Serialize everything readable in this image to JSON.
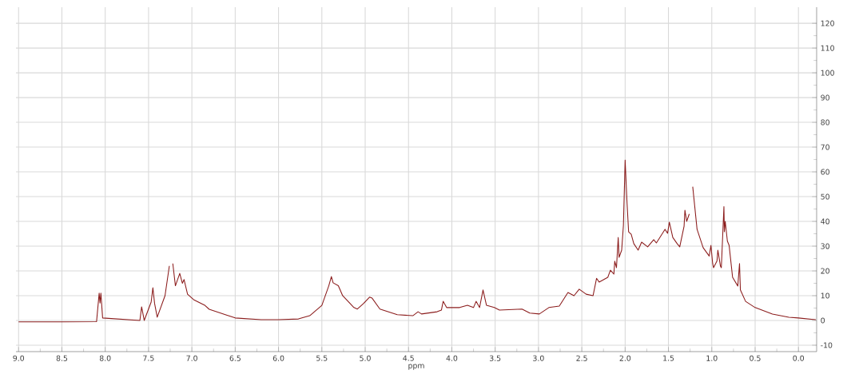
{
  "chart_data": {
    "type": "line",
    "xlabel": "ppm",
    "x": [
      9.0,
      8.5,
      8.1,
      8.07,
      8.06,
      8.05,
      8.03,
      7.6,
      7.58,
      7.55,
      7.47,
      7.45,
      7.43,
      7.4,
      7.31,
      7.26,
      7.24,
      7.22,
      7.19,
      7.14,
      7.11,
      7.09,
      7.05,
      6.98,
      6.85,
      6.8,
      6.6,
      6.5,
      6.2,
      6.0,
      5.77,
      5.64,
      5.5,
      5.42,
      5.39,
      5.37,
      5.31,
      5.26,
      5.13,
      5.09,
      5.02,
      4.95,
      4.92,
      4.83,
      4.63,
      4.45,
      4.39,
      4.35,
      4.17,
      4.12,
      4.1,
      4.06,
      3.91,
      3.82,
      3.75,
      3.72,
      3.68,
      3.64,
      3.6,
      3.51,
      3.45,
      3.19,
      3.1,
      2.99,
      2.88,
      2.76,
      2.66,
      2.59,
      2.53,
      2.45,
      2.37,
      2.33,
      2.3,
      2.2,
      2.17,
      2.13,
      2.12,
      2.1,
      2.08,
      2.07,
      2.04,
      2.02,
      2.0,
      1.98,
      1.96,
      1.93,
      1.9,
      1.85,
      1.81,
      1.74,
      1.67,
      1.64,
      1.61,
      1.54,
      1.51,
      1.49,
      1.45,
      1.4,
      1.37,
      1.32,
      1.31,
      1.29,
      1.26,
      1.245,
      1.22,
      1.17,
      1.1,
      1.03,
      1.01,
      0.99,
      0.98,
      0.94,
      0.93,
      0.9,
      0.89,
      0.86,
      0.855,
      0.845,
      0.82,
      0.8,
      0.76,
      0.7,
      0.68,
      0.67,
      0.61,
      0.5,
      0.3,
      0.11,
      0.0,
      -0.2
    ],
    "series": [
      {
        "color": "#8b1c1c",
        "values": [
          -0.6,
          -0.6,
          -0.5,
          11,
          7,
          11,
          1,
          0,
          5.5,
          0,
          7.4,
          13.2,
          6.8,
          1.3,
          10,
          22,
          null,
          23,
          14,
          19,
          15,
          16.5,
          10.6,
          8.4,
          6.1,
          4.5,
          2.2,
          1,
          0.3,
          0.3,
          0.6,
          1.9,
          6.1,
          14,
          17.7,
          15.2,
          14,
          10,
          5.2,
          4.6,
          6.8,
          9.4,
          9,
          4.6,
          2.3,
          1.9,
          3.5,
          2.6,
          3.5,
          4.2,
          7.7,
          5.2,
          5.2,
          6.1,
          5.2,
          7.7,
          5.2,
          12.3,
          6.1,
          5.2,
          4.2,
          4.6,
          3,
          2.6,
          5.2,
          5.8,
          11.3,
          10,
          12.6,
          10.6,
          10,
          17,
          15.5,
          17.4,
          20.3,
          18.7,
          23.9,
          21.3,
          33.5,
          25.5,
          28.4,
          38.4,
          64.8,
          48.7,
          35.8,
          34.8,
          31,
          28.4,
          31.6,
          29.7,
          32.6,
          31.3,
          32.9,
          36.8,
          35.2,
          39.7,
          33.5,
          31,
          29.7,
          38,
          44.5,
          40,
          43,
          null,
          54,
          36.8,
          29.4,
          26,
          30.3,
          23,
          21.3,
          24,
          28.4,
          21.9,
          21.3,
          46,
          35.8,
          40,
          32,
          30.3,
          17.4,
          13.9,
          23,
          12.3,
          7.7,
          5.2,
          2.6,
          1.3,
          1,
          0.3
        ]
      }
    ],
    "xlim": [
      9.03,
      -0.21
    ],
    "ylim": [
      -12.6,
      126.5
    ],
    "xticks": [
      {
        "value": 9.0,
        "label": "9.0"
      },
      {
        "value": 8.5,
        "label": "8.5"
      },
      {
        "value": 8.0,
        "label": "8.0"
      },
      {
        "value": 7.5,
        "label": "7.5"
      },
      {
        "value": 7.0,
        "label": "7.0"
      },
      {
        "value": 6.5,
        "label": "6.5"
      },
      {
        "value": 6.0,
        "label": "6.0"
      },
      {
        "value": 5.5,
        "label": "5.5"
      },
      {
        "value": 5.0,
        "label": "5.0"
      },
      {
        "value": 4.5,
        "label": "4.5"
      },
      {
        "value": 4.0,
        "label": "4.0"
      },
      {
        "value": 3.5,
        "label": "3.5"
      },
      {
        "value": 3.0,
        "label": "3.0"
      },
      {
        "value": 2.5,
        "label": "2.5"
      },
      {
        "value": 2.0,
        "label": "2.0"
      },
      {
        "value": 1.5,
        "label": "1.5"
      },
      {
        "value": 1.0,
        "label": "1.0"
      },
      {
        "value": 0.5,
        "label": "0.5"
      },
      {
        "value": 0.0,
        "label": "0.0"
      }
    ],
    "yticks": [
      -10,
      0,
      10,
      20,
      30,
      40,
      50,
      60,
      70,
      80,
      90,
      100,
      110,
      120
    ],
    "grid": true
  }
}
